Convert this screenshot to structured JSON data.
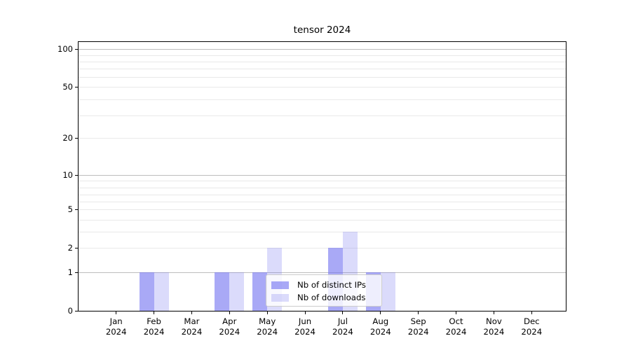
{
  "title": "tensor 2024",
  "chart_data": {
    "type": "bar",
    "title": "tensor 2024",
    "x_months": [
      "Jan",
      "Feb",
      "Mar",
      "Apr",
      "May",
      "Jun",
      "Jul",
      "Aug",
      "Sep",
      "Oct",
      "Nov",
      "Dec"
    ],
    "x_year": "2024",
    "series": [
      {
        "name": "Nb of distinct IPs",
        "color": "rgba(112,112,240,0.6)",
        "values": [
          0,
          1,
          0,
          1,
          1,
          0,
          2,
          1,
          0,
          0,
          0,
          0
        ]
      },
      {
        "name": "Nb of downloads",
        "color": "rgba(112,112,240,0.25)",
        "values": [
          0,
          1,
          0,
          1,
          2,
          0,
          3,
          1,
          0,
          0,
          0,
          0
        ]
      }
    ],
    "y_axis": {
      "scale": "symlog",
      "tick_labels": [
        "0",
        "1",
        "2",
        "5",
        "10",
        "20",
        "50",
        "100"
      ],
      "tick_values": [
        0,
        1,
        2,
        5,
        10,
        20,
        50,
        100
      ],
      "gridlines_major": [
        1,
        10,
        100
      ],
      "gridlines_minor": [
        2,
        3,
        4,
        5,
        6,
        7,
        8,
        9,
        20,
        30,
        40,
        50,
        60,
        70,
        80,
        90
      ]
    },
    "legend": {
      "position": "lower center inside",
      "items": [
        "Nb of distinct IPs",
        "Nb of downloads"
      ]
    },
    "colors": {
      "grid_major": "#bdbdbd",
      "grid_minor": "#e9e9e9",
      "spine": "#000000",
      "background": "#ffffff"
    },
    "grid": "on"
  }
}
